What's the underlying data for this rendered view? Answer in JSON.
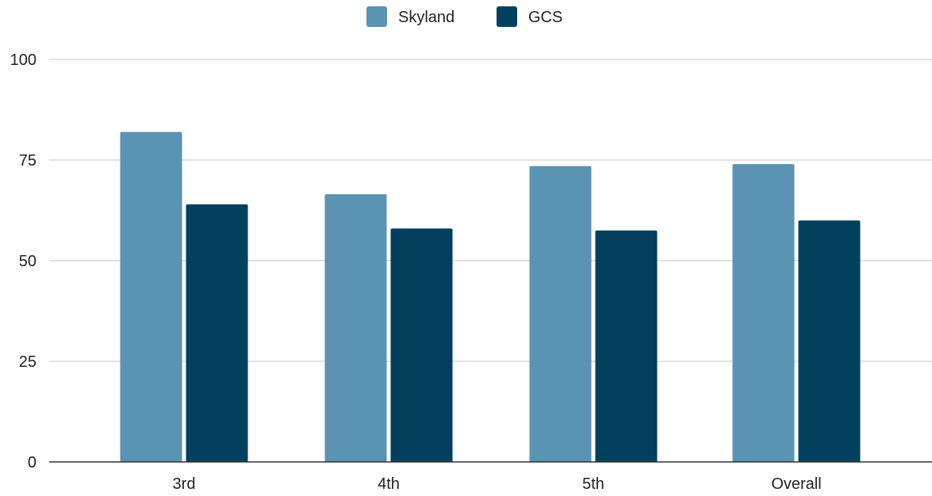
{
  "chart_data": {
    "type": "bar",
    "categories": [
      "3rd",
      "4th",
      "5th",
      "Overall"
    ],
    "series": [
      {
        "name": "Skyland",
        "color": "#5b93b2",
        "values": [
          82,
          66.5,
          73.5,
          74
        ]
      },
      {
        "name": "GCS",
        "color": "#02405d",
        "values": [
          64,
          58,
          57.5,
          60
        ]
      }
    ],
    "ylim": [
      0,
      100
    ],
    "yticks": [
      0,
      25,
      50,
      75,
      100
    ],
    "grid": true,
    "legend_position": "top-center"
  }
}
